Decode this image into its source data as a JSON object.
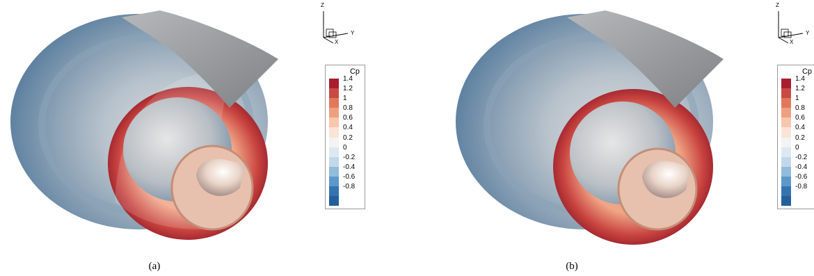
{
  "panels": [
    {
      "caption": "(a)",
      "axes": {
        "z": "Z",
        "y": "Y",
        "x": "X"
      },
      "legend": {
        "title": "Cp",
        "ticks": [
          "1.4",
          "1.2",
          "1",
          "0.8",
          "0.6",
          "0.4",
          "0.2",
          "0",
          "-0.2",
          "-0.4",
          "-0.6",
          "-0.8"
        ]
      }
    },
    {
      "caption": "(b)",
      "axes": {
        "z": "Z",
        "y": "Y",
        "x": "X"
      },
      "legend": {
        "title": "Cp",
        "ticks": [
          "1.4",
          "1.2",
          "1",
          "0.8",
          "0.6",
          "0.4",
          "0.2",
          "0",
          "-0.2",
          "-0.4",
          "-0.6",
          "-0.8"
        ]
      }
    }
  ],
  "colormap": [
    "#a81e2e",
    "#c94a45",
    "#e0795a",
    "#eda07f",
    "#f6c6ad",
    "#fbe4d7",
    "#f3f3f3",
    "#dde8f1",
    "#c2d8ea",
    "#91bcdb",
    "#5d98c9",
    "#3573b0",
    "#245f9c"
  ]
}
